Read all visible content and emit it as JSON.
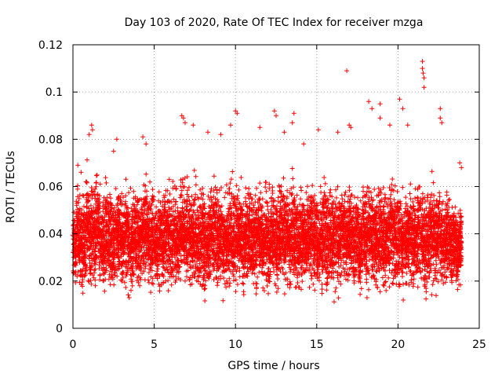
{
  "chart_data": {
    "type": "scatter",
    "title": "Day 103 of 2020, Rate Of TEC Index for receiver mzga",
    "xlabel": "GPS time / hours",
    "ylabel": "ROTI / TECUs",
    "xlim": [
      0,
      25
    ],
    "ylim": [
      0,
      0.12
    ],
    "xticks": [
      "0",
      "5",
      "10",
      "15",
      "20",
      "25"
    ],
    "yticks": [
      "0",
      "0.02",
      "0.04",
      "0.06",
      "0.08",
      "0.1",
      "0.12"
    ],
    "grid": true,
    "marker": "+",
    "color": "#ff0000",
    "series": [
      {
        "x": [
          0.0,
          0.2,
          0.4,
          0.6,
          0.8,
          1.0,
          1.2,
          1.4,
          1.6,
          1.8,
          2.0,
          2.2,
          2.4,
          2.6,
          2.8,
          3.0,
          3.2,
          3.4,
          3.6,
          3.8,
          4.0,
          4.2,
          4.4,
          4.6,
          4.8,
          5.0,
          5.2,
          5.4,
          5.6,
          5.8,
          6.0,
          6.2,
          6.4,
          6.6,
          6.8,
          7.0,
          7.2,
          7.4,
          7.6,
          7.8,
          8.0,
          8.2,
          8.4,
          8.6,
          8.8,
          9.0,
          9.2,
          9.4,
          9.6,
          9.8,
          10.0,
          10.2,
          10.4,
          10.6,
          10.8,
          11.0,
          11.2,
          11.4,
          11.6,
          11.8,
          12.0,
          12.2,
          12.4,
          12.6,
          12.8,
          13.0,
          13.2,
          13.4,
          13.6,
          13.8,
          14.0,
          14.2,
          14.4,
          14.6,
          14.8,
          15.0,
          15.2,
          15.4,
          15.6,
          15.8,
          16.0,
          16.2,
          16.4,
          16.6,
          16.8,
          17.0,
          17.2,
          17.4,
          17.6,
          17.8,
          18.0,
          18.2,
          18.4,
          18.6,
          18.8,
          19.0,
          19.2,
          19.4,
          19.6,
          19.8,
          20.0,
          20.2,
          20.4,
          20.6,
          20.8,
          21.0,
          21.2,
          21.4,
          21.6,
          21.8,
          22.0,
          22.2,
          22.4,
          22.6,
          22.8,
          23.0,
          23.2,
          23.4,
          23.6,
          23.8
        ],
        "y": [
          0.034,
          0.041,
          0.038,
          0.036,
          0.045,
          0.04,
          0.037,
          0.043,
          0.039,
          0.035,
          0.042,
          0.038,
          0.036,
          0.041,
          0.04,
          0.037,
          0.039,
          0.035,
          0.038,
          0.041,
          0.036,
          0.039,
          0.042,
          0.037,
          0.04,
          0.035,
          0.038,
          0.036,
          0.041,
          0.039,
          0.037,
          0.04,
          0.038,
          0.042,
          0.039,
          0.041,
          0.037,
          0.039,
          0.036,
          0.04,
          0.038,
          0.036,
          0.039,
          0.042,
          0.037,
          0.04,
          0.036,
          0.038,
          0.041,
          0.039,
          0.04,
          0.037,
          0.035,
          0.039,
          0.041,
          0.036,
          0.038,
          0.04,
          0.037,
          0.039,
          0.036,
          0.041,
          0.038,
          0.04,
          0.042,
          0.039,
          0.037,
          0.041,
          0.038,
          0.036,
          0.04,
          0.037,
          0.039,
          0.041,
          0.038,
          0.036,
          0.039,
          0.041,
          0.037,
          0.04,
          0.038,
          0.036,
          0.039,
          0.041,
          0.038,
          0.04,
          0.037,
          0.039,
          0.036,
          0.04,
          0.038,
          0.041,
          0.039,
          0.037,
          0.04,
          0.038,
          0.036,
          0.039,
          0.041,
          0.037,
          0.039,
          0.036,
          0.038,
          0.04,
          0.037,
          0.039,
          0.041,
          0.038,
          0.036,
          0.039,
          0.041,
          0.037,
          0.04,
          0.038,
          0.036,
          0.039,
          0.035,
          0.037,
          0.034,
          0.036
        ],
        "spread": [
          0.012,
          0.015,
          0.016,
          0.017,
          0.018,
          0.018,
          0.017,
          0.016,
          0.016,
          0.015,
          0.016,
          0.015,
          0.016,
          0.017,
          0.017,
          0.016,
          0.015,
          0.016,
          0.015,
          0.016,
          0.017,
          0.016,
          0.015,
          0.016,
          0.017,
          0.015,
          0.016,
          0.016,
          0.017,
          0.016,
          0.016,
          0.017,
          0.016,
          0.017,
          0.018,
          0.017,
          0.016,
          0.017,
          0.016,
          0.017,
          0.018,
          0.016,
          0.017,
          0.017,
          0.016,
          0.017,
          0.016,
          0.017,
          0.018,
          0.017,
          0.018,
          0.016,
          0.015,
          0.016,
          0.017,
          0.016,
          0.017,
          0.017,
          0.016,
          0.017,
          0.016,
          0.017,
          0.017,
          0.018,
          0.018,
          0.017,
          0.016,
          0.018,
          0.017,
          0.016,
          0.017,
          0.016,
          0.017,
          0.017,
          0.016,
          0.016,
          0.017,
          0.018,
          0.016,
          0.017,
          0.017,
          0.016,
          0.017,
          0.017,
          0.016,
          0.017,
          0.016,
          0.017,
          0.016,
          0.017,
          0.017,
          0.018,
          0.017,
          0.016,
          0.017,
          0.017,
          0.016,
          0.017,
          0.018,
          0.016,
          0.017,
          0.016,
          0.016,
          0.017,
          0.016,
          0.017,
          0.018,
          0.017,
          0.016,
          0.016,
          0.017,
          0.016,
          0.017,
          0.016,
          0.015,
          0.016,
          0.014,
          0.015,
          0.013,
          0.012
        ]
      }
    ],
    "outliers": [
      {
        "x": 0.3,
        "y": 0.069
      },
      {
        "x": 0.5,
        "y": 0.066
      },
      {
        "x": 1.0,
        "y": 0.082
      },
      {
        "x": 1.15,
        "y": 0.086
      },
      {
        "x": 1.2,
        "y": 0.084
      },
      {
        "x": 2.5,
        "y": 0.075
      },
      {
        "x": 2.7,
        "y": 0.08
      },
      {
        "x": 4.3,
        "y": 0.081
      },
      {
        "x": 4.5,
        "y": 0.078
      },
      {
        "x": 6.7,
        "y": 0.09
      },
      {
        "x": 6.8,
        "y": 0.089
      },
      {
        "x": 6.9,
        "y": 0.087
      },
      {
        "x": 7.4,
        "y": 0.086
      },
      {
        "x": 8.3,
        "y": 0.083
      },
      {
        "x": 9.1,
        "y": 0.082
      },
      {
        "x": 9.7,
        "y": 0.086
      },
      {
        "x": 10.0,
        "y": 0.092
      },
      {
        "x": 10.1,
        "y": 0.091
      },
      {
        "x": 11.5,
        "y": 0.085
      },
      {
        "x": 12.4,
        "y": 0.092
      },
      {
        "x": 12.5,
        "y": 0.09
      },
      {
        "x": 13.0,
        "y": 0.083
      },
      {
        "x": 13.5,
        "y": 0.087
      },
      {
        "x": 13.6,
        "y": 0.091
      },
      {
        "x": 14.2,
        "y": 0.078
      },
      {
        "x": 15.1,
        "y": 0.084
      },
      {
        "x": 16.3,
        "y": 0.083
      },
      {
        "x": 16.85,
        "y": 0.109
      },
      {
        "x": 17.0,
        "y": 0.086
      },
      {
        "x": 17.1,
        "y": 0.085
      },
      {
        "x": 18.2,
        "y": 0.096
      },
      {
        "x": 18.4,
        "y": 0.093
      },
      {
        "x": 18.9,
        "y": 0.095
      },
      {
        "x": 18.9,
        "y": 0.089
      },
      {
        "x": 19.5,
        "y": 0.086
      },
      {
        "x": 20.1,
        "y": 0.097
      },
      {
        "x": 20.3,
        "y": 0.093
      },
      {
        "x": 20.6,
        "y": 0.086
      },
      {
        "x": 21.5,
        "y": 0.113
      },
      {
        "x": 21.5,
        "y": 0.11
      },
      {
        "x": 21.55,
        "y": 0.108
      },
      {
        "x": 21.6,
        "y": 0.106
      },
      {
        "x": 21.6,
        "y": 0.102
      },
      {
        "x": 22.6,
        "y": 0.093
      },
      {
        "x": 22.6,
        "y": 0.089
      },
      {
        "x": 22.7,
        "y": 0.087
      },
      {
        "x": 23.8,
        "y": 0.07
      },
      {
        "x": 23.9,
        "y": 0.068
      }
    ]
  }
}
